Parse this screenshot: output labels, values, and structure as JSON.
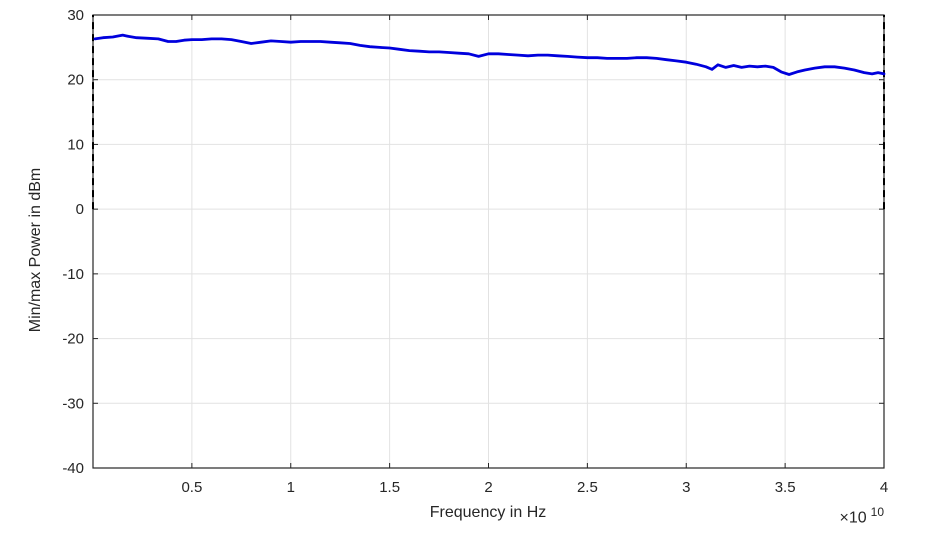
{
  "figure": {
    "background": "#ffffff",
    "axis_color": "#262626",
    "grid_color": "#e2e2e2",
    "text_color": "#262626",
    "line_color": "#0000dd",
    "edge_marker_color": "#000000"
  },
  "chart_data": {
    "type": "line",
    "title": "",
    "xlabel": "Frequency in Hz",
    "ylabel": "Min/max Power in dBm",
    "x_multiplier_base": "×10",
    "x_multiplier_exponent": "10",
    "x_unit_scale": 10000000000,
    "xlim": [
      0,
      4
    ],
    "ylim": [
      -40,
      30
    ],
    "grid": true,
    "legend": "none",
    "xticks": [
      0.5,
      1,
      1.5,
      2,
      2.5,
      3,
      3.5,
      4
    ],
    "xtick_labels": [
      "0.5",
      "1",
      "1.5",
      "2",
      "2.5",
      "3",
      "3.5",
      "4"
    ],
    "yticks": [
      30,
      20,
      10,
      0,
      -10,
      -20,
      -30,
      -40
    ],
    "ytick_labels": [
      "30",
      "20",
      "10",
      "0",
      "-10",
      "-20",
      "-30",
      "-40"
    ],
    "series": [
      {
        "name": "minmax-power",
        "color": "#0000dd",
        "line_width": 2.8,
        "x": [
          0.01,
          0.05,
          0.1,
          0.15,
          0.18,
          0.22,
          0.28,
          0.33,
          0.38,
          0.42,
          0.46,
          0.5,
          0.55,
          0.6,
          0.65,
          0.7,
          0.75,
          0.8,
          0.85,
          0.9,
          0.95,
          1.0,
          1.05,
          1.1,
          1.15,
          1.2,
          1.25,
          1.3,
          1.35,
          1.4,
          1.45,
          1.5,
          1.55,
          1.6,
          1.65,
          1.7,
          1.75,
          1.8,
          1.85,
          1.9,
          1.95,
          2.0,
          2.05,
          2.1,
          2.15,
          2.2,
          2.25,
          2.3,
          2.35,
          2.4,
          2.45,
          2.5,
          2.55,
          2.6,
          2.65,
          2.7,
          2.75,
          2.8,
          2.85,
          2.9,
          2.95,
          3.0,
          3.05,
          3.1,
          3.13,
          3.16,
          3.2,
          3.24,
          3.28,
          3.32,
          3.36,
          3.4,
          3.44,
          3.48,
          3.52,
          3.56,
          3.6,
          3.65,
          3.7,
          3.75,
          3.8,
          3.85,
          3.9,
          3.94,
          3.97,
          4.0
        ],
        "y": [
          26.3,
          26.5,
          26.6,
          26.9,
          26.7,
          26.5,
          26.4,
          26.3,
          25.9,
          25.9,
          26.1,
          26.2,
          26.2,
          26.3,
          26.3,
          26.2,
          25.9,
          25.6,
          25.8,
          26.0,
          25.9,
          25.8,
          25.9,
          25.9,
          25.9,
          25.8,
          25.7,
          25.6,
          25.3,
          25.1,
          25.0,
          24.9,
          24.7,
          24.5,
          24.4,
          24.3,
          24.3,
          24.2,
          24.1,
          24.0,
          23.6,
          24.0,
          24.0,
          23.9,
          23.8,
          23.7,
          23.8,
          23.8,
          23.7,
          23.6,
          23.5,
          23.4,
          23.4,
          23.3,
          23.3,
          23.3,
          23.4,
          23.4,
          23.3,
          23.1,
          22.9,
          22.7,
          22.4,
          22.0,
          21.6,
          22.3,
          21.9,
          22.2,
          21.9,
          22.1,
          22.0,
          22.1,
          21.9,
          21.2,
          20.8,
          21.2,
          21.5,
          21.8,
          22.0,
          22.0,
          21.8,
          21.5,
          21.1,
          20.9,
          21.1,
          20.9
        ]
      }
    ],
    "edge_markers": [
      {
        "x": 0,
        "y_from": 0,
        "y_to": 30,
        "style": "dashed",
        "color": "#000000"
      },
      {
        "x": 4,
        "y_from": 0,
        "y_to": 30,
        "style": "dashed",
        "color": "#000000"
      }
    ]
  }
}
